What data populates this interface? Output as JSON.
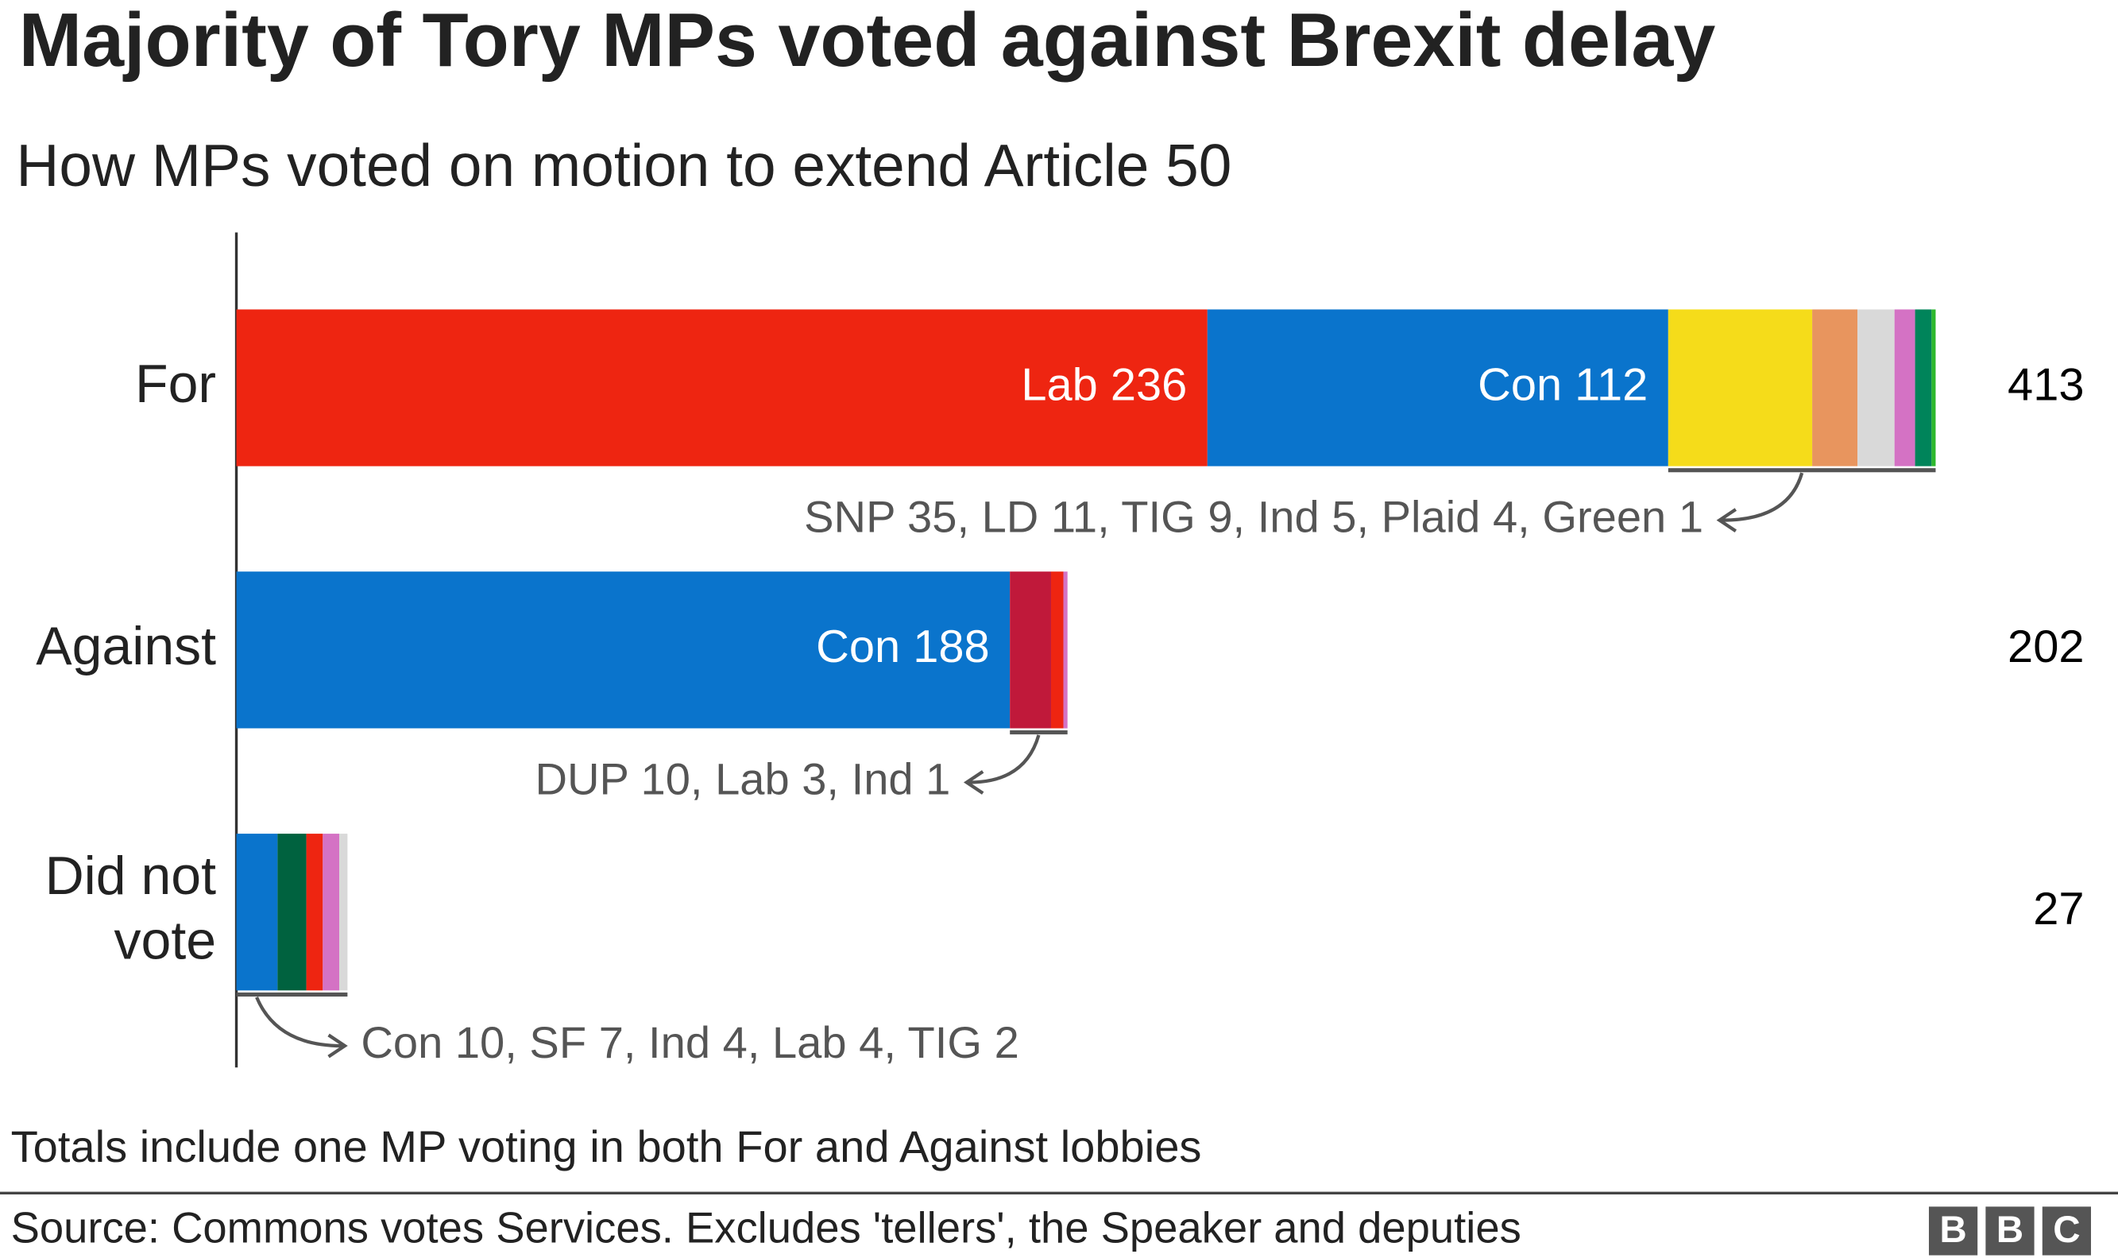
{
  "chart_data": {
    "type": "stacked-bar",
    "title": "Majority of Tory MPs voted against Brexit delay",
    "subtitle": "How MPs voted on motion to extend Article 50",
    "stacks": [
      {
        "category": "For",
        "total": 413,
        "note": "SNP 35, LD 11, TIG 9, Ind 5, Plaid 4, Green 1",
        "segments": [
          {
            "name": "Lab",
            "color": "#ee2511",
            "value": 236,
            "value_label": "Lab 236"
          },
          {
            "name": "Con",
            "color": "#0a74cc",
            "value": 112,
            "value_label": "Con 112"
          },
          {
            "name": "SNP",
            "color": "#f5dc1a",
            "value": 35
          },
          {
            "name": "LD",
            "color": "#e8955e",
            "value": 11
          },
          {
            "name": "TIG",
            "color": "#d9d9d9",
            "value": 9
          },
          {
            "name": "Ind",
            "color": "#d472c4",
            "value": 5
          },
          {
            "name": "Plaid",
            "color": "#00845a",
            "value": 4
          },
          {
            "name": "Green",
            "color": "#2db82d",
            "value": 1
          }
        ]
      },
      {
        "category": "Against",
        "total": 202,
        "note": "DUP 10, Lab 3, Ind 1",
        "segments": [
          {
            "name": "Con",
            "color": "#0a74cc",
            "value": 188,
            "value_label": "Con 188"
          },
          {
            "name": "DUP",
            "color": "#c0193a",
            "value": 10
          },
          {
            "name": "Lab",
            "color": "#ee2511",
            "value": 3
          },
          {
            "name": "Ind",
            "color": "#d472c4",
            "value": 1
          }
        ]
      },
      {
        "category": "Did not vote",
        "total": 27,
        "note": "Con 10, SF 7, Ind 4, Lab 4, TIG 2",
        "segments": [
          {
            "name": "Con",
            "color": "#0a74cc",
            "value": 10
          },
          {
            "name": "SF",
            "color": "#00623f",
            "value": 7
          },
          {
            "name": "Lab",
            "color": "#ee2511",
            "value": 4
          },
          {
            "name": "Ind",
            "color": "#d472c4",
            "value": 4
          },
          {
            "name": "TIG",
            "color": "#d9d9d9",
            "value": 2
          }
        ]
      }
    ],
    "footnote": "Totals include one MP voting in both For and Against lobbies",
    "source": "Source: Commons votes Services. Excludes 'tellers', the Speaker and deputies",
    "logo": [
      "B",
      "B",
      "C"
    ]
  }
}
